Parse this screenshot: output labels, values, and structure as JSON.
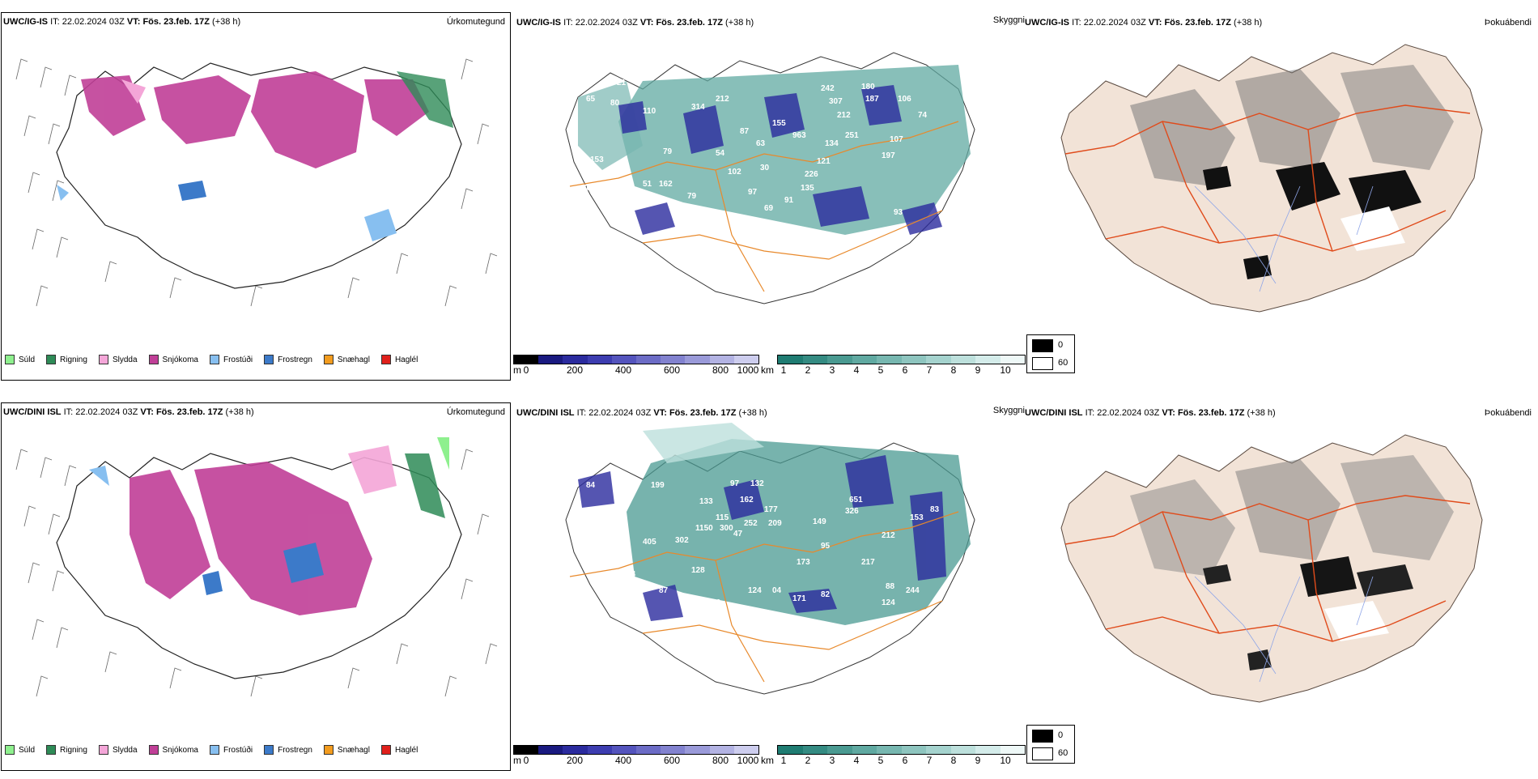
{
  "rows": [
    {
      "model": "UWC/IG-IS",
      "it_label": "IT:",
      "it_value": "22.02.2024 03Z",
      "vt_label": "VT:",
      "vt_value": "Fös. 23.feb. 17Z",
      "lead": "(+38 h)"
    },
    {
      "model": "UWC/DINI ISL",
      "it_label": "IT:",
      "it_value": "22.02.2024 03Z",
      "vt_label": "VT:",
      "vt_value": "Fös. 23.feb. 17Z",
      "lead": "(+38 h)"
    }
  ],
  "panel_titles": {
    "precip_type": "Úrkomutegund",
    "visibility": "Skyggni",
    "fog": "Þokuábendi"
  },
  "precip_legend": [
    {
      "label": "Súld",
      "color": "#8ef08e"
    },
    {
      "label": "Rigning",
      "color": "#2e8b57"
    },
    {
      "label": "Slydda",
      "color": "#f4a6d8"
    },
    {
      "label": "Snjókoma",
      "color": "#c03f97"
    },
    {
      "label": "Frostúði",
      "color": "#87bff0"
    },
    {
      "label": "Frostregn",
      "color": "#3c7ac9"
    },
    {
      "label": "Snæhagl",
      "color": "#f39c1e"
    },
    {
      "label": "Haglél",
      "color": "#e0201b"
    }
  ],
  "cloud_base_bar": {
    "unit": "m",
    "ticks": [
      "0",
      "200",
      "400",
      "600",
      "800",
      "1000"
    ],
    "colors": [
      "#000000",
      "#1a1a80",
      "#2b2b9e",
      "#3d3db0",
      "#5454bd",
      "#6c6cc6",
      "#8282cf",
      "#9a9ad9",
      "#b3b3e3",
      "#cdcdee"
    ]
  },
  "visibility_bar": {
    "unit": "km",
    "ticks": [
      "1",
      "2",
      "3",
      "4",
      "5",
      "6",
      "7",
      "8",
      "9",
      "10"
    ],
    "colors": [
      "#1f7c72",
      "#348b82",
      "#4a9a91",
      "#60a9a1",
      "#77b7b0",
      "#8ec5bf",
      "#a5d3ce",
      "#bde0dc",
      "#d4ecea",
      "#eef8f7"
    ]
  },
  "fog_legend": [
    {
      "label": "0",
      "color": "#000000"
    },
    {
      "label": "60",
      "color": "#ffffff"
    }
  ],
  "cloud_labels_top": [
    "105",
    "21",
    "65",
    "80",
    "110",
    "314",
    "212",
    "242",
    "180",
    "187",
    "307",
    "106",
    "212",
    "74",
    "155",
    "963",
    "251",
    "107",
    "134",
    "197",
    "79",
    "54",
    "63",
    "87",
    "121",
    "226",
    "102",
    "30",
    "51",
    "162",
    "69",
    "96",
    "62",
    "87",
    "97",
    "93",
    "91",
    "135",
    "120",
    "153",
    "70",
    "79"
  ],
  "cloud_labels_bottom": [
    "100",
    "84",
    "199",
    "133",
    "97",
    "132",
    "162",
    "115",
    "177",
    "1150",
    "300",
    "252",
    "47",
    "209",
    "149",
    "326",
    "651",
    "153",
    "83",
    "212",
    "405",
    "302",
    "128",
    "124",
    "173",
    "95",
    "217",
    "114",
    "87",
    "76",
    "88",
    "244",
    "171",
    "82",
    "124",
    "04",
    "127"
  ]
}
